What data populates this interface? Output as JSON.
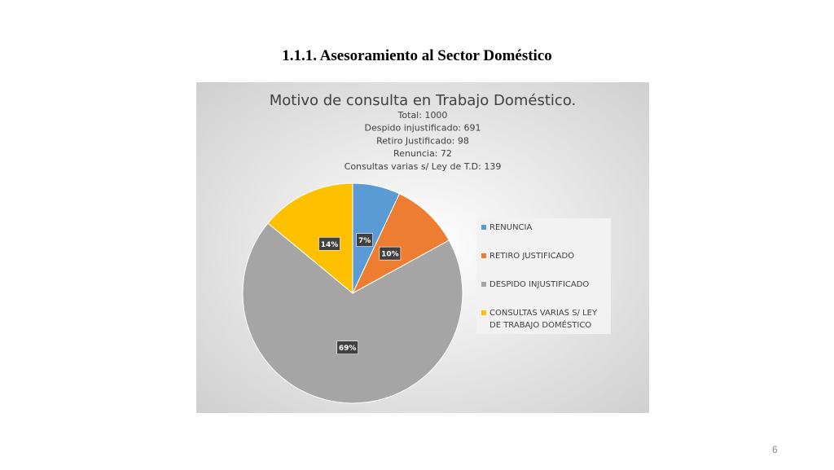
{
  "heading": "1.1.1. Asesoramiento al Sector Doméstico",
  "page_number": "6",
  "chart_data": {
    "type": "pie",
    "title": "Motivo de consulta en Trabajo Doméstico.",
    "subtitle": [
      "Total: 1000",
      "Despido injustificado: 691",
      "Retiro Justificado: 98",
      "Renuncia: 72",
      "Consultas varias s/ Ley de T.D: 139"
    ],
    "categories": [
      "RENUNCIA",
      "RETIRO JUSTIFICADO",
      "DESPIDO INJUSTIFICADO",
      "CONSULTAS VARIAS S/ LEY DE TRABAJO DOMÉSTICO"
    ],
    "values": [
      7,
      10,
      69,
      14
    ],
    "value_labels": [
      "7%",
      "10%",
      "69%",
      "14%"
    ],
    "colors": [
      "#5b9bd5",
      "#ed7d31",
      "#a5a5a5",
      "#ffc000"
    ],
    "legend": "right"
  }
}
